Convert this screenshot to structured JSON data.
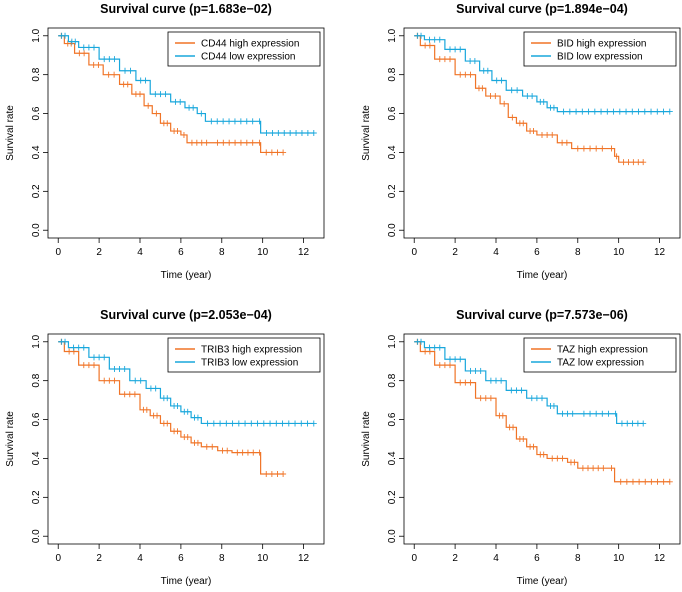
{
  "chart_data": [
    {
      "type": "line",
      "title": "Survival curve (p=1.683e−02)",
      "xlabel": "Time (year)",
      "ylabel": "Survival rate",
      "xlim": [
        0,
        12.5
      ],
      "ylim": [
        0,
        1
      ],
      "xticks": [
        0,
        2,
        4,
        6,
        8,
        10,
        12
      ],
      "yticks": [
        0.0,
        0.2,
        0.4,
        0.6,
        0.8,
        1.0
      ],
      "legend_position": "top-right",
      "series": [
        {
          "name": "CD44 high expression",
          "color": "#f07427",
          "points": [
            [
              0,
              1.0
            ],
            [
              0.3,
              0.96
            ],
            [
              0.8,
              0.91
            ],
            [
              1.5,
              0.85
            ],
            [
              2.2,
              0.8
            ],
            [
              3.0,
              0.75
            ],
            [
              3.6,
              0.7
            ],
            [
              4.2,
              0.64
            ],
            [
              4.6,
              0.6
            ],
            [
              5.0,
              0.55
            ],
            [
              5.5,
              0.51
            ],
            [
              6.0,
              0.49
            ],
            [
              6.3,
              0.45
            ],
            [
              7.5,
              0.45
            ],
            [
              9.8,
              0.45
            ],
            [
              9.9,
              0.4
            ],
            [
              11.0,
              0.4
            ]
          ]
        },
        {
          "name": "CD44 low expression",
          "color": "#19a7dc",
          "points": [
            [
              0,
              1.0
            ],
            [
              0.5,
              0.97
            ],
            [
              1.0,
              0.94
            ],
            [
              2.0,
              0.88
            ],
            [
              3.0,
              0.82
            ],
            [
              3.8,
              0.77
            ],
            [
              4.5,
              0.7
            ],
            [
              5.5,
              0.66
            ],
            [
              6.2,
              0.63
            ],
            [
              6.8,
              0.6
            ],
            [
              7.2,
              0.56
            ],
            [
              9.8,
              0.56
            ],
            [
              9.9,
              0.5
            ],
            [
              12.5,
              0.5
            ]
          ]
        }
      ]
    },
    {
      "type": "line",
      "title": "Survival curve (p=1.894e−04)",
      "xlabel": "Time (year)",
      "ylabel": "Survival rate",
      "xlim": [
        0,
        12.5
      ],
      "ylim": [
        0,
        1
      ],
      "xticks": [
        0,
        2,
        4,
        6,
        8,
        10,
        12
      ],
      "yticks": [
        0.0,
        0.2,
        0.4,
        0.6,
        0.8,
        1.0
      ],
      "legend_position": "top-right",
      "series": [
        {
          "name": "BID high expression",
          "color": "#f07427",
          "points": [
            [
              0,
              1.0
            ],
            [
              0.3,
              0.95
            ],
            [
              1.0,
              0.88
            ],
            [
              2.0,
              0.8
            ],
            [
              3.0,
              0.73
            ],
            [
              3.5,
              0.69
            ],
            [
              4.2,
              0.65
            ],
            [
              4.6,
              0.58
            ],
            [
              5.0,
              0.55
            ],
            [
              5.5,
              0.51
            ],
            [
              6.0,
              0.49
            ],
            [
              7.0,
              0.45
            ],
            [
              7.7,
              0.42
            ],
            [
              9.5,
              0.42
            ],
            [
              9.8,
              0.38
            ],
            [
              10.0,
              0.35
            ],
            [
              11.2,
              0.35
            ]
          ]
        },
        {
          "name": "BID low expression",
          "color": "#19a7dc",
          "points": [
            [
              0,
              1.0
            ],
            [
              0.5,
              0.98
            ],
            [
              1.5,
              0.93
            ],
            [
              2.5,
              0.87
            ],
            [
              3.2,
              0.82
            ],
            [
              3.8,
              0.77
            ],
            [
              4.5,
              0.72
            ],
            [
              5.3,
              0.69
            ],
            [
              6.0,
              0.66
            ],
            [
              6.5,
              0.63
            ],
            [
              7.0,
              0.61
            ],
            [
              12.5,
              0.61
            ]
          ]
        }
      ]
    },
    {
      "type": "line",
      "title": "Survival curve (p=2.053e−04)",
      "xlabel": "Time (year)",
      "ylabel": "Survival rate",
      "xlim": [
        0,
        12.5
      ],
      "ylim": [
        0,
        1
      ],
      "xticks": [
        0,
        2,
        4,
        6,
        8,
        10,
        12
      ],
      "yticks": [
        0.0,
        0.2,
        0.4,
        0.6,
        0.8,
        1.0
      ],
      "legend_position": "top-right",
      "series": [
        {
          "name": "TRIB3 high expression",
          "color": "#f07427",
          "points": [
            [
              0,
              1.0
            ],
            [
              0.3,
              0.95
            ],
            [
              1.0,
              0.88
            ],
            [
              2.0,
              0.8
            ],
            [
              3.0,
              0.73
            ],
            [
              4.0,
              0.65
            ],
            [
              4.5,
              0.62
            ],
            [
              5.0,
              0.58
            ],
            [
              5.5,
              0.54
            ],
            [
              6.0,
              0.51
            ],
            [
              6.5,
              0.48
            ],
            [
              7.0,
              0.46
            ],
            [
              7.8,
              0.44
            ],
            [
              8.5,
              0.43
            ],
            [
              9.8,
              0.43
            ],
            [
              9.9,
              0.32
            ],
            [
              11.0,
              0.32
            ]
          ]
        },
        {
          "name": "TRIB3 low expression",
          "color": "#19a7dc",
          "points": [
            [
              0,
              1.0
            ],
            [
              0.5,
              0.97
            ],
            [
              1.5,
              0.92
            ],
            [
              2.5,
              0.86
            ],
            [
              3.5,
              0.8
            ],
            [
              4.3,
              0.76
            ],
            [
              5.0,
              0.71
            ],
            [
              5.5,
              0.67
            ],
            [
              6.0,
              0.64
            ],
            [
              6.5,
              0.61
            ],
            [
              7.0,
              0.58
            ],
            [
              12.5,
              0.58
            ]
          ]
        }
      ]
    },
    {
      "type": "line",
      "title": "Survival curve (p=7.573e−06)",
      "xlabel": "Time (year)",
      "ylabel": "Survival rate",
      "xlim": [
        0,
        12.5
      ],
      "ylim": [
        0,
        1
      ],
      "xticks": [
        0,
        2,
        4,
        6,
        8,
        10,
        12
      ],
      "yticks": [
        0.0,
        0.2,
        0.4,
        0.6,
        0.8,
        1.0
      ],
      "legend_position": "top-right",
      "series": [
        {
          "name": "TAZ high expression",
          "color": "#f07427",
          "points": [
            [
              0,
              1.0
            ],
            [
              0.3,
              0.95
            ],
            [
              1.0,
              0.88
            ],
            [
              2.0,
              0.79
            ],
            [
              3.0,
              0.71
            ],
            [
              4.0,
              0.62
            ],
            [
              4.5,
              0.56
            ],
            [
              5.0,
              0.5
            ],
            [
              5.5,
              0.46
            ],
            [
              6.0,
              0.42
            ],
            [
              6.5,
              0.4
            ],
            [
              7.5,
              0.38
            ],
            [
              8.0,
              0.35
            ],
            [
              9.5,
              0.35
            ],
            [
              9.8,
              0.28
            ],
            [
              12.5,
              0.28
            ]
          ]
        },
        {
          "name": "TAZ low expression",
          "color": "#19a7dc",
          "points": [
            [
              0,
              1.0
            ],
            [
              0.5,
              0.97
            ],
            [
              1.5,
              0.91
            ],
            [
              2.5,
              0.85
            ],
            [
              3.5,
              0.8
            ],
            [
              4.5,
              0.75
            ],
            [
              5.5,
              0.71
            ],
            [
              6.5,
              0.67
            ],
            [
              7.0,
              0.63
            ],
            [
              8.0,
              0.63
            ],
            [
              9.8,
              0.63
            ],
            [
              9.9,
              0.58
            ],
            [
              11.2,
              0.58
            ]
          ]
        }
      ]
    }
  ]
}
